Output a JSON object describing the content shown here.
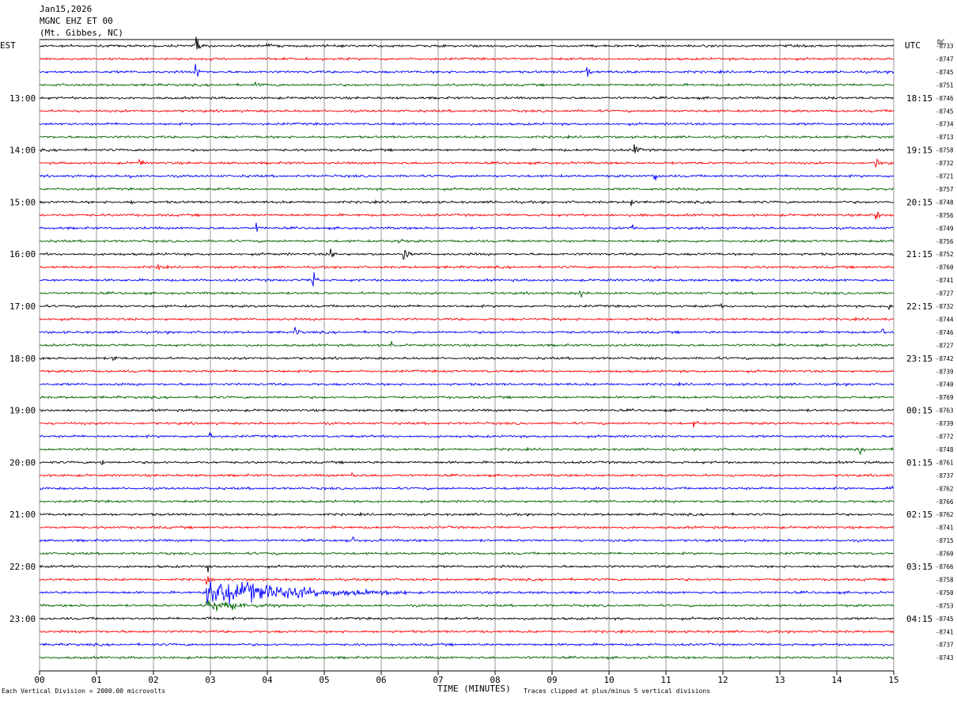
{
  "header": {
    "date": "Jan15,2026",
    "station": "MGNC EHZ ET 00",
    "location": "(Mt. Gibbes, NC)"
  },
  "left_label": "EST",
  "right_label": "UTC",
  "dc_label": "DC",
  "footer": {
    "scale_note": "Each Vertical Division = 2000.00 microvolts",
    "x_title": "TIME (MINUTES)",
    "clip_note": "Traces clipped at plus/minus 5 vertical divisions"
  },
  "colors": {
    "black": "#000000",
    "red": "#ff0000",
    "blue": "#0000ff",
    "green": "#006400",
    "grid": "#808080"
  },
  "chart_data": {
    "type": "line",
    "xlabel": "TIME (MINUTES)",
    "xlim": [
      0,
      15
    ],
    "x_ticks": [
      "00",
      "01",
      "02",
      "03",
      "04",
      "05",
      "06",
      "07",
      "08",
      "09",
      "10",
      "11",
      "12",
      "13",
      "14",
      "15"
    ],
    "trace_color_cycle": [
      "black",
      "red",
      "blue",
      "green"
    ],
    "est_hour_labels": [
      "13:00",
      "14:00",
      "15:00",
      "16:00",
      "17:00",
      "18:00",
      "19:00",
      "20:00",
      "21:00",
      "22:00",
      "23:00"
    ],
    "utc_hour_labels": [
      "18:15",
      "19:15",
      "20:15",
      "21:15",
      "22:15",
      "23:15",
      "00:15",
      "01:15",
      "02:15",
      "03:15",
      "04:15"
    ],
    "hour_label_first_trace": 4,
    "traces": [
      {
        "dc": "-8733",
        "events": [
          {
            "minute": 2.75,
            "amp": 6
          },
          {
            "minute": 4.0,
            "amp": 2.5
          }
        ]
      },
      {
        "dc": "-8747",
        "events": []
      },
      {
        "dc": "-8745",
        "events": [
          {
            "minute": 2.75,
            "amp": 5
          },
          {
            "minute": 9.6,
            "amp": 3
          }
        ]
      },
      {
        "dc": "-8751",
        "events": [
          {
            "minute": 3.8,
            "amp": 1.5
          }
        ]
      },
      {
        "dc": "-8746",
        "events": [
          {
            "minute": 13.8,
            "amp": 1.2
          }
        ]
      },
      {
        "dc": "-8745",
        "events": []
      },
      {
        "dc": "-8734",
        "events": []
      },
      {
        "dc": "-8713",
        "events": []
      },
      {
        "dc": "-8758",
        "events": [
          {
            "minute": 10.45,
            "amp": 3
          },
          {
            "minute": 1.8,
            "amp": 2
          }
        ]
      },
      {
        "dc": "-8732",
        "events": [
          {
            "minute": 1.75,
            "amp": 3
          },
          {
            "minute": 14.7,
            "amp": 2
          }
        ]
      },
      {
        "dc": "-8721",
        "events": [
          {
            "minute": 10.8,
            "amp": 2
          },
          {
            "minute": 1.6,
            "amp": 1.5
          }
        ]
      },
      {
        "dc": "-8757",
        "events": []
      },
      {
        "dc": "-8748",
        "events": [
          {
            "minute": 10.4,
            "amp": 2.5
          },
          {
            "minute": 1.6,
            "amp": 1.5
          }
        ]
      },
      {
        "dc": "-8756",
        "events": [
          {
            "minute": 10.6,
            "amp": 2
          },
          {
            "minute": 14.7,
            "amp": 2.5
          }
        ]
      },
      {
        "dc": "-8749",
        "events": [
          {
            "minute": 3.8,
            "amp": 2.5
          },
          {
            "minute": 10.4,
            "amp": 2
          }
        ]
      },
      {
        "dc": "-8756",
        "events": [
          {
            "minute": 6.3,
            "amp": 2
          }
        ]
      },
      {
        "dc": "-8752",
        "events": [
          {
            "minute": 6.4,
            "amp": 4
          },
          {
            "minute": 5.1,
            "amp": 2.5
          }
        ]
      },
      {
        "dc": "-8760",
        "events": [
          {
            "minute": 2.1,
            "amp": 1.5
          }
        ]
      },
      {
        "dc": "-8741",
        "events": [
          {
            "minute": 4.8,
            "amp": 4
          }
        ]
      },
      {
        "dc": "-8727",
        "events": [
          {
            "minute": 9.5,
            "amp": 2
          }
        ]
      },
      {
        "dc": "-8732",
        "events": [
          {
            "minute": 11.9,
            "amp": 2
          },
          {
            "minute": 14.9,
            "amp": 2
          }
        ]
      },
      {
        "dc": "-8744",
        "events": []
      },
      {
        "dc": "-8746",
        "events": [
          {
            "minute": 4.5,
            "amp": 2
          },
          {
            "minute": 14.8,
            "amp": 2
          }
        ]
      },
      {
        "dc": "-8727",
        "events": [
          {
            "minute": 6.2,
            "amp": 2.5
          }
        ]
      },
      {
        "dc": "-8742",
        "events": [
          {
            "minute": 1.3,
            "amp": 1.5
          }
        ]
      },
      {
        "dc": "-8739",
        "events": []
      },
      {
        "dc": "-8740",
        "events": [
          {
            "minute": 1.4,
            "amp": 1.5
          }
        ]
      },
      {
        "dc": "-8769",
        "events": []
      },
      {
        "dc": "-8763",
        "events": []
      },
      {
        "dc": "-8739",
        "events": [
          {
            "minute": 11.5,
            "amp": 2
          }
        ]
      },
      {
        "dc": "-8772",
        "events": [
          {
            "minute": 3.0,
            "amp": 1.5
          }
        ]
      },
      {
        "dc": "-8748",
        "events": [
          {
            "minute": 14.4,
            "amp": 1.5
          }
        ]
      },
      {
        "dc": "-8761",
        "events": [
          {
            "minute": 1.1,
            "amp": 2
          }
        ]
      },
      {
        "dc": "-8737",
        "events": [
          {
            "minute": 5.5,
            "amp": 2
          }
        ]
      },
      {
        "dc": "-8762",
        "events": [
          {
            "minute": 14.9,
            "amp": 2
          }
        ]
      },
      {
        "dc": "-8766",
        "events": []
      },
      {
        "dc": "-8762",
        "events": []
      },
      {
        "dc": "-8741",
        "events": []
      },
      {
        "dc": "-8715",
        "events": [
          {
            "minute": 5.5,
            "amp": 1.5
          }
        ]
      },
      {
        "dc": "-8760",
        "events": []
      },
      {
        "dc": "-8766",
        "events": [
          {
            "minute": 2.95,
            "amp": 2
          }
        ]
      },
      {
        "dc": "-8758",
        "events": [
          {
            "minute": 2.95,
            "amp": 2
          }
        ]
      },
      {
        "dc": "-8750",
        "events": [
          {
            "minute": 2.95,
            "amp": 6,
            "coda": 3.5
          }
        ]
      },
      {
        "dc": "-8753",
        "events": [
          {
            "minute": 2.95,
            "amp": 2.5,
            "coda": 1.5
          }
        ]
      },
      {
        "dc": "-8745",
        "events": [
          {
            "minute": 2.95,
            "amp": 1.5
          }
        ]
      },
      {
        "dc": "-8741",
        "events": []
      },
      {
        "dc": "-8737",
        "events": []
      },
      {
        "dc": "-8743",
        "events": []
      }
    ]
  }
}
